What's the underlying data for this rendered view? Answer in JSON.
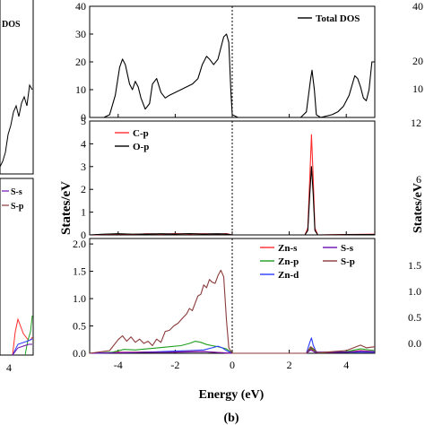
{
  "figure": {
    "xlabel": "Energy (eV)",
    "ylabel": "States/eV",
    "panel_label": "(b)",
    "left_legend": [
      "DOS",
      "S-s",
      "S-p"
    ],
    "left_ticks": [
      "4"
    ],
    "right_ticks_top": [
      "40",
      "20",
      "10"
    ],
    "right_ticks_mid": [
      "12",
      "6"
    ],
    "right_ticks_bot": [
      "1.5",
      "1.0",
      "0.5",
      "0.0"
    ],
    "right_ylabel": "States/eV"
  },
  "chart_data": [
    {
      "type": "line",
      "xlim": [
        -5,
        5
      ],
      "ylim": [
        0,
        40
      ],
      "yticks": [
        0,
        10,
        20,
        30,
        40
      ],
      "xticks": [
        -4,
        -2,
        0,
        2,
        4
      ],
      "fermi_level": 0,
      "legend_position": "top-right",
      "series": [
        {
          "name": "Total DOS",
          "color": "#000000",
          "points": [
            [
              -4.5,
              0
            ],
            [
              -4.3,
              1
            ],
            [
              -4.1,
              8
            ],
            [
              -3.95,
              18
            ],
            [
              -3.85,
              21
            ],
            [
              -3.75,
              19
            ],
            [
              -3.6,
              12
            ],
            [
              -3.5,
              10
            ],
            [
              -3.4,
              13
            ],
            [
              -3.3,
              11
            ],
            [
              -3.2,
              7
            ],
            [
              -3.05,
              3
            ],
            [
              -2.9,
              5
            ],
            [
              -2.8,
              12
            ],
            [
              -2.65,
              14
            ],
            [
              -2.5,
              9
            ],
            [
              -2.35,
              7
            ],
            [
              -2.2,
              8
            ],
            [
              -2.0,
              9
            ],
            [
              -1.8,
              10
            ],
            [
              -1.6,
              11
            ],
            [
              -1.4,
              12
            ],
            [
              -1.2,
              14
            ],
            [
              -1.05,
              19
            ],
            [
              -0.9,
              22
            ],
            [
              -0.8,
              21
            ],
            [
              -0.65,
              19
            ],
            [
              -0.5,
              21
            ],
            [
              -0.4,
              25
            ],
            [
              -0.3,
              29
            ],
            [
              -0.2,
              30
            ],
            [
              -0.12,
              27
            ],
            [
              -0.05,
              10
            ],
            [
              0.0,
              1
            ],
            [
              0.2,
              0
            ],
            [
              0.6,
              0
            ],
            [
              1.0,
              0
            ],
            [
              1.5,
              0
            ],
            [
              2.0,
              0
            ],
            [
              2.4,
              0
            ],
            [
              2.6,
              2
            ],
            [
              2.75,
              14
            ],
            [
              2.8,
              17
            ],
            [
              2.88,
              10
            ],
            [
              2.95,
              1
            ],
            [
              3.1,
              0
            ],
            [
              3.5,
              1
            ],
            [
              3.7,
              2
            ],
            [
              3.9,
              4
            ],
            [
              4.1,
              8
            ],
            [
              4.3,
              15
            ],
            [
              4.4,
              14
            ],
            [
              4.5,
              11
            ],
            [
              4.6,
              7
            ],
            [
              4.7,
              6
            ],
            [
              4.8,
              10
            ],
            [
              4.9,
              20
            ],
            [
              5.0,
              20
            ]
          ]
        }
      ]
    },
    {
      "type": "line",
      "xlim": [
        -5,
        5
      ],
      "ylim": [
        0,
        5
      ],
      "yticks": [
        0,
        1,
        2,
        3,
        4,
        5
      ],
      "xticks": [
        -4,
        -2,
        0,
        2,
        4
      ],
      "fermi_level": 0,
      "legend_position": "top-left",
      "series": [
        {
          "name": "C-p",
          "color": "#ff2a2a",
          "points": [
            [
              -5,
              0
            ],
            [
              -4.5,
              0.02
            ],
            [
              -4,
              0.04
            ],
            [
              -3.5,
              0.02
            ],
            [
              -3,
              0.05
            ],
            [
              -2.5,
              0.03
            ],
            [
              -2,
              0.06
            ],
            [
              -1.5,
              0.04
            ],
            [
              -1,
              0.05
            ],
            [
              -0.5,
              0.04
            ],
            [
              -0.2,
              0.06
            ],
            [
              0,
              0
            ],
            [
              1,
              0
            ],
            [
              2,
              0
            ],
            [
              2.55,
              0
            ],
            [
              2.65,
              0.3
            ],
            [
              2.72,
              2.5
            ],
            [
              2.78,
              4.4
            ],
            [
              2.84,
              2.5
            ],
            [
              2.9,
              0.3
            ],
            [
              3.0,
              0
            ],
            [
              4,
              0.02
            ],
            [
              5,
              0.03
            ]
          ]
        },
        {
          "name": "O-p",
          "color": "#000000",
          "points": [
            [
              -5,
              0
            ],
            [
              -4.5,
              0.03
            ],
            [
              -4,
              0.05
            ],
            [
              -3.5,
              0.03
            ],
            [
              -3,
              0.04
            ],
            [
              -2.5,
              0.05
            ],
            [
              -2,
              0.04
            ],
            [
              -1.5,
              0.06
            ],
            [
              -1,
              0.04
            ],
            [
              -0.5,
              0.05
            ],
            [
              -0.2,
              0.04
            ],
            [
              0,
              0
            ],
            [
              1,
              0
            ],
            [
              2,
              0
            ],
            [
              2.55,
              0
            ],
            [
              2.65,
              0.2
            ],
            [
              2.72,
              1.8
            ],
            [
              2.78,
              3.0
            ],
            [
              2.84,
              1.8
            ],
            [
              2.9,
              0.2
            ],
            [
              3.0,
              0
            ],
            [
              4,
              0.01
            ],
            [
              5,
              0.02
            ]
          ]
        }
      ]
    },
    {
      "type": "line",
      "xlim": [
        -5,
        5
      ],
      "ylim": [
        0,
        2.1
      ],
      "yticks": [
        0.0,
        0.5,
        1.0,
        1.5,
        2.0
      ],
      "xticks": [
        -4,
        -2,
        0,
        2,
        4
      ],
      "fermi_level": 0,
      "legend_position": "top-right",
      "series": [
        {
          "name": "Zn-s",
          "color": "#ff2a2a",
          "points": [
            [
              -5,
              0
            ],
            [
              -4,
              0.02
            ],
            [
              -3,
              0.02
            ],
            [
              -2,
              0.03
            ],
            [
              -1,
              0.03
            ],
            [
              0,
              0
            ],
            [
              2.6,
              0
            ],
            [
              2.75,
              0.08
            ],
            [
              2.85,
              0.05
            ],
            [
              3.0,
              0.01
            ],
            [
              4,
              0.02
            ],
            [
              4.5,
              0.05
            ],
            [
              5,
              0.03
            ]
          ]
        },
        {
          "name": "Zn-p",
          "color": "#1e9e1e",
          "points": [
            [
              -5,
              0
            ],
            [
              -4.2,
              0.02
            ],
            [
              -3.8,
              0.07
            ],
            [
              -3.4,
              0.06
            ],
            [
              -3,
              0.08
            ],
            [
              -2.6,
              0.1
            ],
            [
              -2.2,
              0.12
            ],
            [
              -1.8,
              0.14
            ],
            [
              -1.5,
              0.18
            ],
            [
              -1.3,
              0.22
            ],
            [
              -1.1,
              0.2
            ],
            [
              -0.9,
              0.16
            ],
            [
              -0.7,
              0.14
            ],
            [
              -0.5,
              0.12
            ],
            [
              -0.2,
              0.08
            ],
            [
              0,
              0
            ],
            [
              2.6,
              0
            ],
            [
              2.75,
              0.1
            ],
            [
              2.85,
              0.06
            ],
            [
              3.0,
              0.01
            ],
            [
              4,
              0.03
            ],
            [
              4.5,
              0.08
            ],
            [
              5,
              0.05
            ]
          ]
        },
        {
          "name": "Zn-d",
          "color": "#2b3bff",
          "points": [
            [
              -5,
              0
            ],
            [
              -4,
              0.01
            ],
            [
              -3,
              0.02
            ],
            [
              -2,
              0.04
            ],
            [
              -1.5,
              0.05
            ],
            [
              -1,
              0.06
            ],
            [
              -0.7,
              0.1
            ],
            [
              -0.5,
              0.13
            ],
            [
              -0.35,
              0.1
            ],
            [
              -0.2,
              0.05
            ],
            [
              0,
              0
            ],
            [
              2.6,
              0
            ],
            [
              2.72,
              0.2
            ],
            [
              2.78,
              0.28
            ],
            [
              2.84,
              0.15
            ],
            [
              2.95,
              0.02
            ],
            [
              4,
              0.02
            ],
            [
              5,
              0.02
            ]
          ]
        },
        {
          "name": "S-s",
          "color": "#6a0dad",
          "points": [
            [
              -5,
              0
            ],
            [
              -4,
              0.01
            ],
            [
              -3,
              0.02
            ],
            [
              -2,
              0.02
            ],
            [
              -1,
              0.03
            ],
            [
              0,
              0
            ],
            [
              2.6,
              0
            ],
            [
              2.75,
              0.06
            ],
            [
              2.9,
              0.02
            ],
            [
              4,
              0.02
            ],
            [
              4.5,
              0.04
            ],
            [
              5,
              0.03
            ]
          ]
        },
        {
          "name": "S-p",
          "color": "#8b3a3a",
          "points": [
            [
              -5,
              0
            ],
            [
              -4.3,
              0.05
            ],
            [
              -4.0,
              0.25
            ],
            [
              -3.85,
              0.32
            ],
            [
              -3.7,
              0.22
            ],
            [
              -3.55,
              0.3
            ],
            [
              -3.4,
              0.2
            ],
            [
              -3.25,
              0.26
            ],
            [
              -3.1,
              0.18
            ],
            [
              -2.95,
              0.22
            ],
            [
              -2.8,
              0.14
            ],
            [
              -2.65,
              0.26
            ],
            [
              -2.5,
              0.2
            ],
            [
              -2.35,
              0.4
            ],
            [
              -2.2,
              0.42
            ],
            [
              -2.05,
              0.5
            ],
            [
              -1.9,
              0.55
            ],
            [
              -1.75,
              0.64
            ],
            [
              -1.6,
              0.72
            ],
            [
              -1.5,
              0.82
            ],
            [
              -1.4,
              0.78
            ],
            [
              -1.3,
              0.92
            ],
            [
              -1.2,
              1.05
            ],
            [
              -1.1,
              1.08
            ],
            [
              -1.0,
              1.25
            ],
            [
              -0.9,
              1.2
            ],
            [
              -0.8,
              1.35
            ],
            [
              -0.7,
              1.3
            ],
            [
              -0.6,
              1.28
            ],
            [
              -0.5,
              1.42
            ],
            [
              -0.4,
              1.52
            ],
            [
              -0.3,
              1.4
            ],
            [
              -0.2,
              0.6
            ],
            [
              -0.12,
              0.1
            ],
            [
              0,
              0
            ],
            [
              2.6,
              0
            ],
            [
              2.75,
              0.12
            ],
            [
              2.85,
              0.08
            ],
            [
              3.0,
              0.01
            ],
            [
              4,
              0.05
            ],
            [
              4.5,
              0.15
            ],
            [
              4.7,
              0.1
            ],
            [
              5,
              0.12
            ]
          ]
        }
      ]
    }
  ]
}
